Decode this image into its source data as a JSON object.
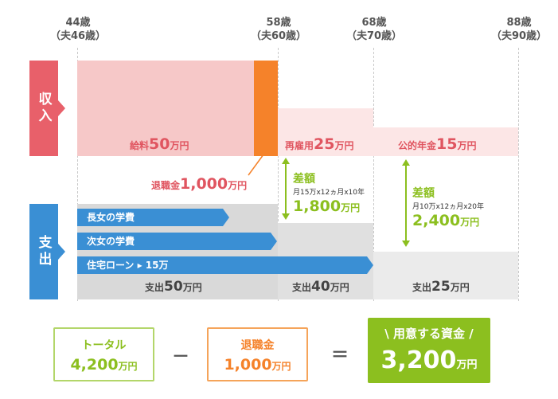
{
  "ages": [
    {
      "age": "44歳",
      "spouse": "（夫46歳）"
    },
    {
      "age": "58歳",
      "spouse": "（夫60歳）"
    },
    {
      "age": "68歳",
      "spouse": "（夫70歳）"
    },
    {
      "age": "88歳",
      "spouse": "（夫90歳）"
    }
  ],
  "side_labels": {
    "income": "収入",
    "expense": "支出"
  },
  "income": {
    "salary": {
      "prefix": "給料",
      "amount": "50",
      "unit": "万円"
    },
    "reemployment": {
      "prefix": "再雇用",
      "amount": "25",
      "unit": "万円"
    },
    "pension": {
      "prefix": "公的年金",
      "amount": "15",
      "unit": "万円"
    },
    "retirement": {
      "prefix": "退職金",
      "amount": "1,000",
      "unit": "万円"
    }
  },
  "differences": [
    {
      "title": "差額",
      "formula": "月15万x12ヵ月x10年",
      "amount": "1,800",
      "unit": "万円"
    },
    {
      "title": "差額",
      "formula": "月10万x12ヵ月x20年",
      "amount": "2,400",
      "unit": "万円"
    }
  ],
  "expense_bars": [
    {
      "label": "長女の学費"
    },
    {
      "label": "次女の学費"
    },
    {
      "label": "住宅ローン ▸ 15万"
    }
  ],
  "expense_totals": [
    {
      "prefix": "支出",
      "amount": "50",
      "unit": "万円"
    },
    {
      "prefix": "支出",
      "amount": "40",
      "unit": "万円"
    },
    {
      "prefix": "支出",
      "amount": "25",
      "unit": "万円"
    }
  ],
  "equation": {
    "total": {
      "title": "トータル",
      "amount": "4,200",
      "unit": "万円"
    },
    "minus": "－",
    "retirement": {
      "title": "退職金",
      "amount": "1,000",
      "unit": "万円"
    },
    "equals": "＝",
    "result": {
      "title": "用意する資金",
      "amount": "3,200",
      "unit": "万円",
      "slash_left": "\\",
      "slash_right": "/"
    }
  },
  "colors": {
    "income_side": "#e8606a",
    "expense_side": "#3a8fd4",
    "salary_band": "#f6c8c8",
    "income_light": "#fce6e6",
    "retirement_bar": "#f5822a",
    "text_red": "#e05560",
    "diff_green": "#8cbf1f",
    "expense_gray": "#d9d9d9",
    "expense_gray_light": "#ebebeb",
    "result_green": "#8cbf1f"
  }
}
